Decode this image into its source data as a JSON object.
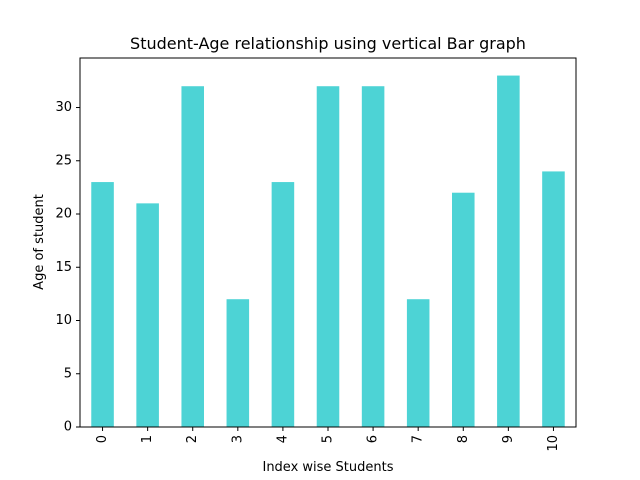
{
  "chart_data": {
    "type": "bar",
    "title": "Student-Age relationship using vertical Bar graph",
    "xlabel": "Index wise Students",
    "ylabel": "Age of student",
    "categories": [
      "0",
      "1",
      "2",
      "3",
      "4",
      "5",
      "6",
      "7",
      "8",
      "9",
      "10"
    ],
    "values": [
      23,
      21,
      32,
      12,
      23,
      32,
      32,
      12,
      22,
      33,
      24
    ],
    "ylim": [
      0,
      34.65
    ],
    "yticks": [
      "0",
      "5",
      "10",
      "15",
      "20",
      "25",
      "30"
    ],
    "grid": false,
    "legend": "none",
    "bar_color": "#4dd3d5"
  }
}
